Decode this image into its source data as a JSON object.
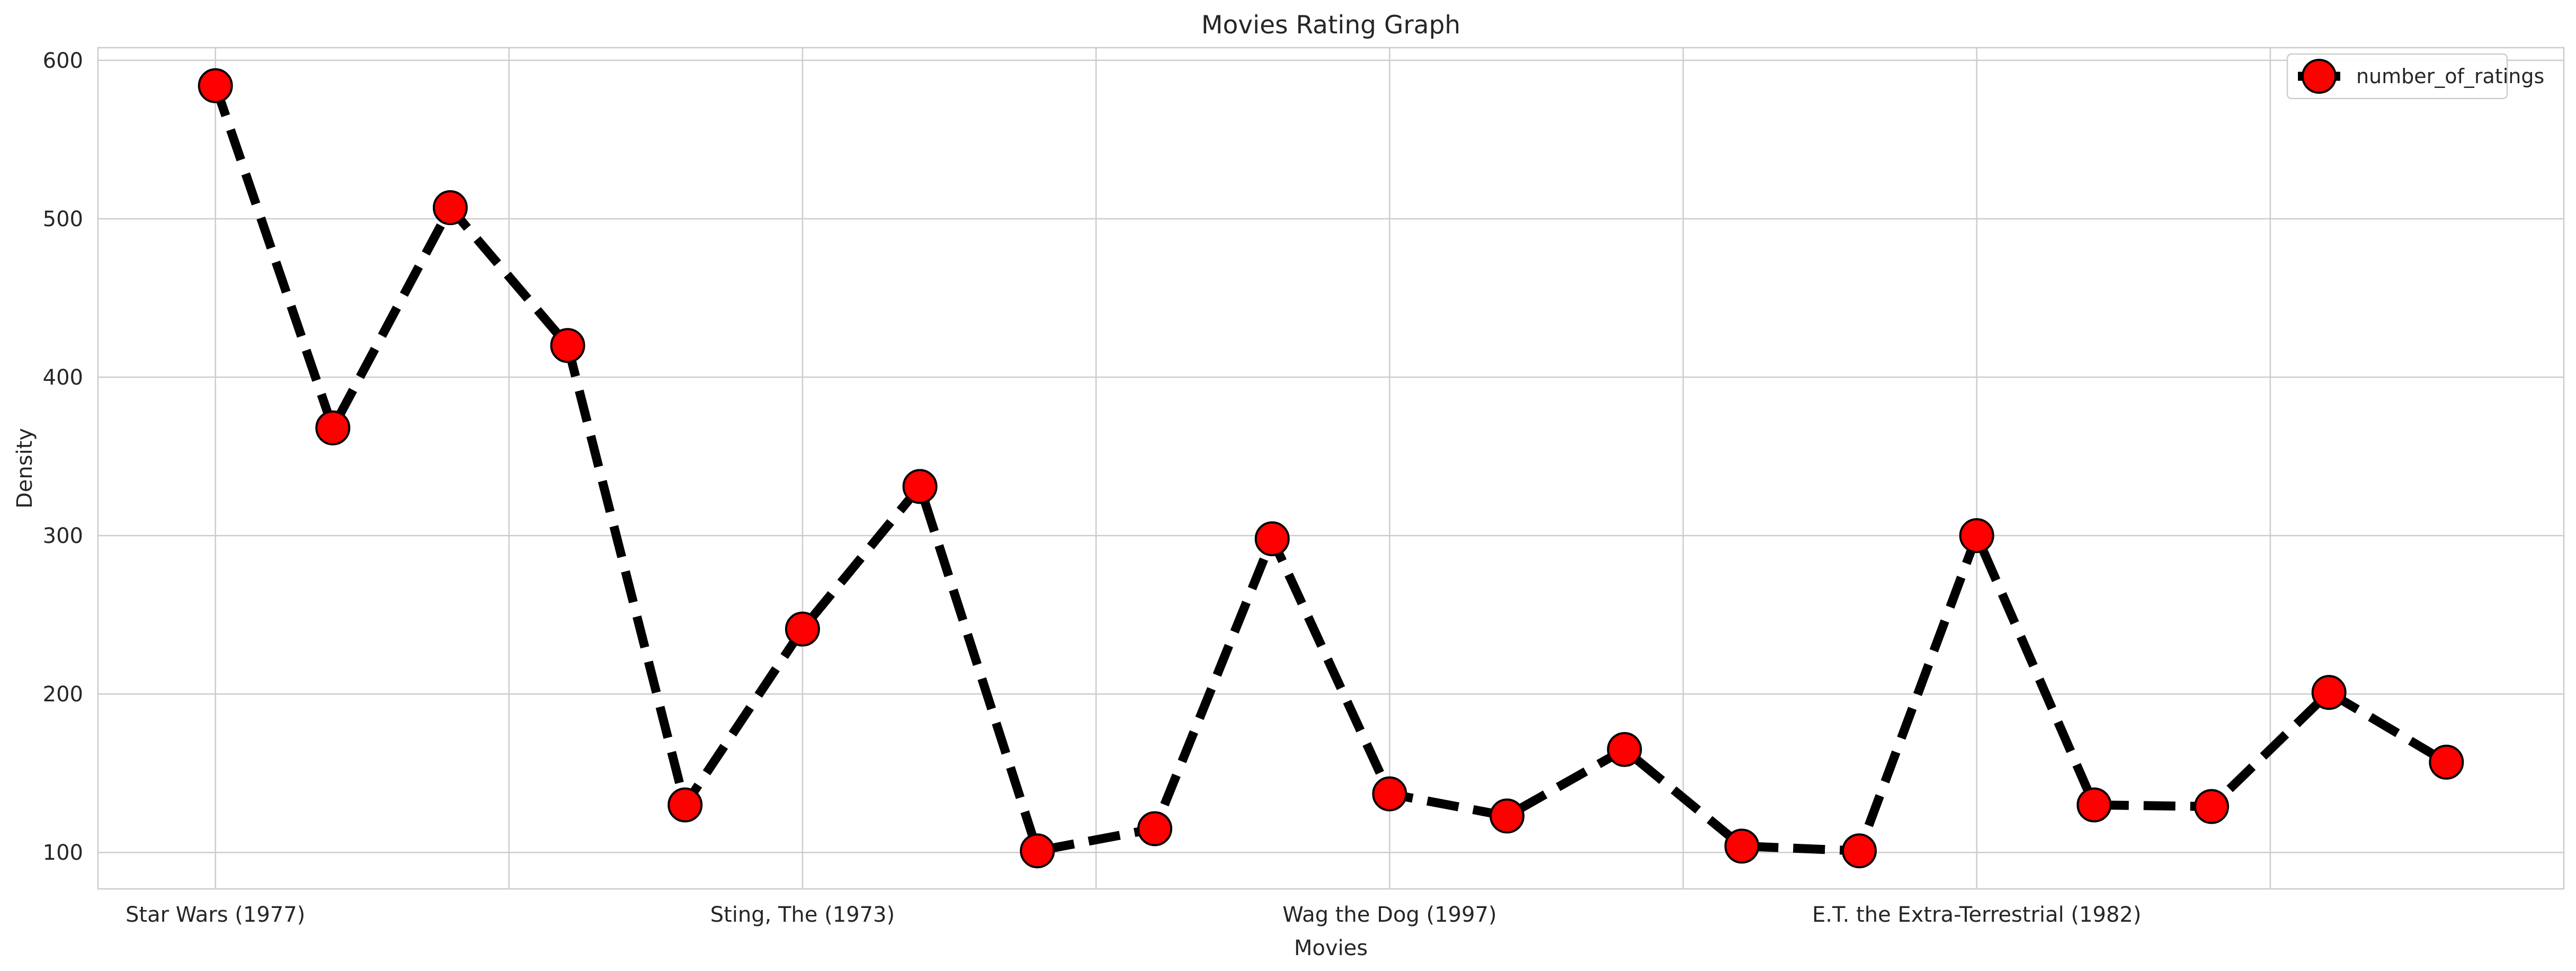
{
  "chart_data": {
    "type": "line",
    "title": "Movies Rating Graph",
    "xlabel": "Movies",
    "ylabel": "Density",
    "x_tick_labels": [
      "Star Wars (1977)",
      "Sting, The (1973)",
      "Wag the Dog (1997)",
      "E.T. the Extra-Terrestrial (1982)"
    ],
    "y_ticks": [
      100,
      200,
      300,
      400,
      500,
      600
    ],
    "ylim": [
      77,
      608
    ],
    "legend": {
      "position": "top-right"
    },
    "grid": true,
    "series": [
      {
        "name": "number_of_ratings",
        "line_style": "dashed",
        "line_color": "#000000",
        "marker": "circle",
        "marker_color": "#ff0000",
        "marker_edge_color": "#000000",
        "values": [
          584,
          368,
          507,
          420,
          130,
          241,
          331,
          101,
          115,
          298,
          137,
          123,
          165,
          104,
          101,
          300,
          130,
          129,
          201,
          157
        ]
      }
    ]
  }
}
